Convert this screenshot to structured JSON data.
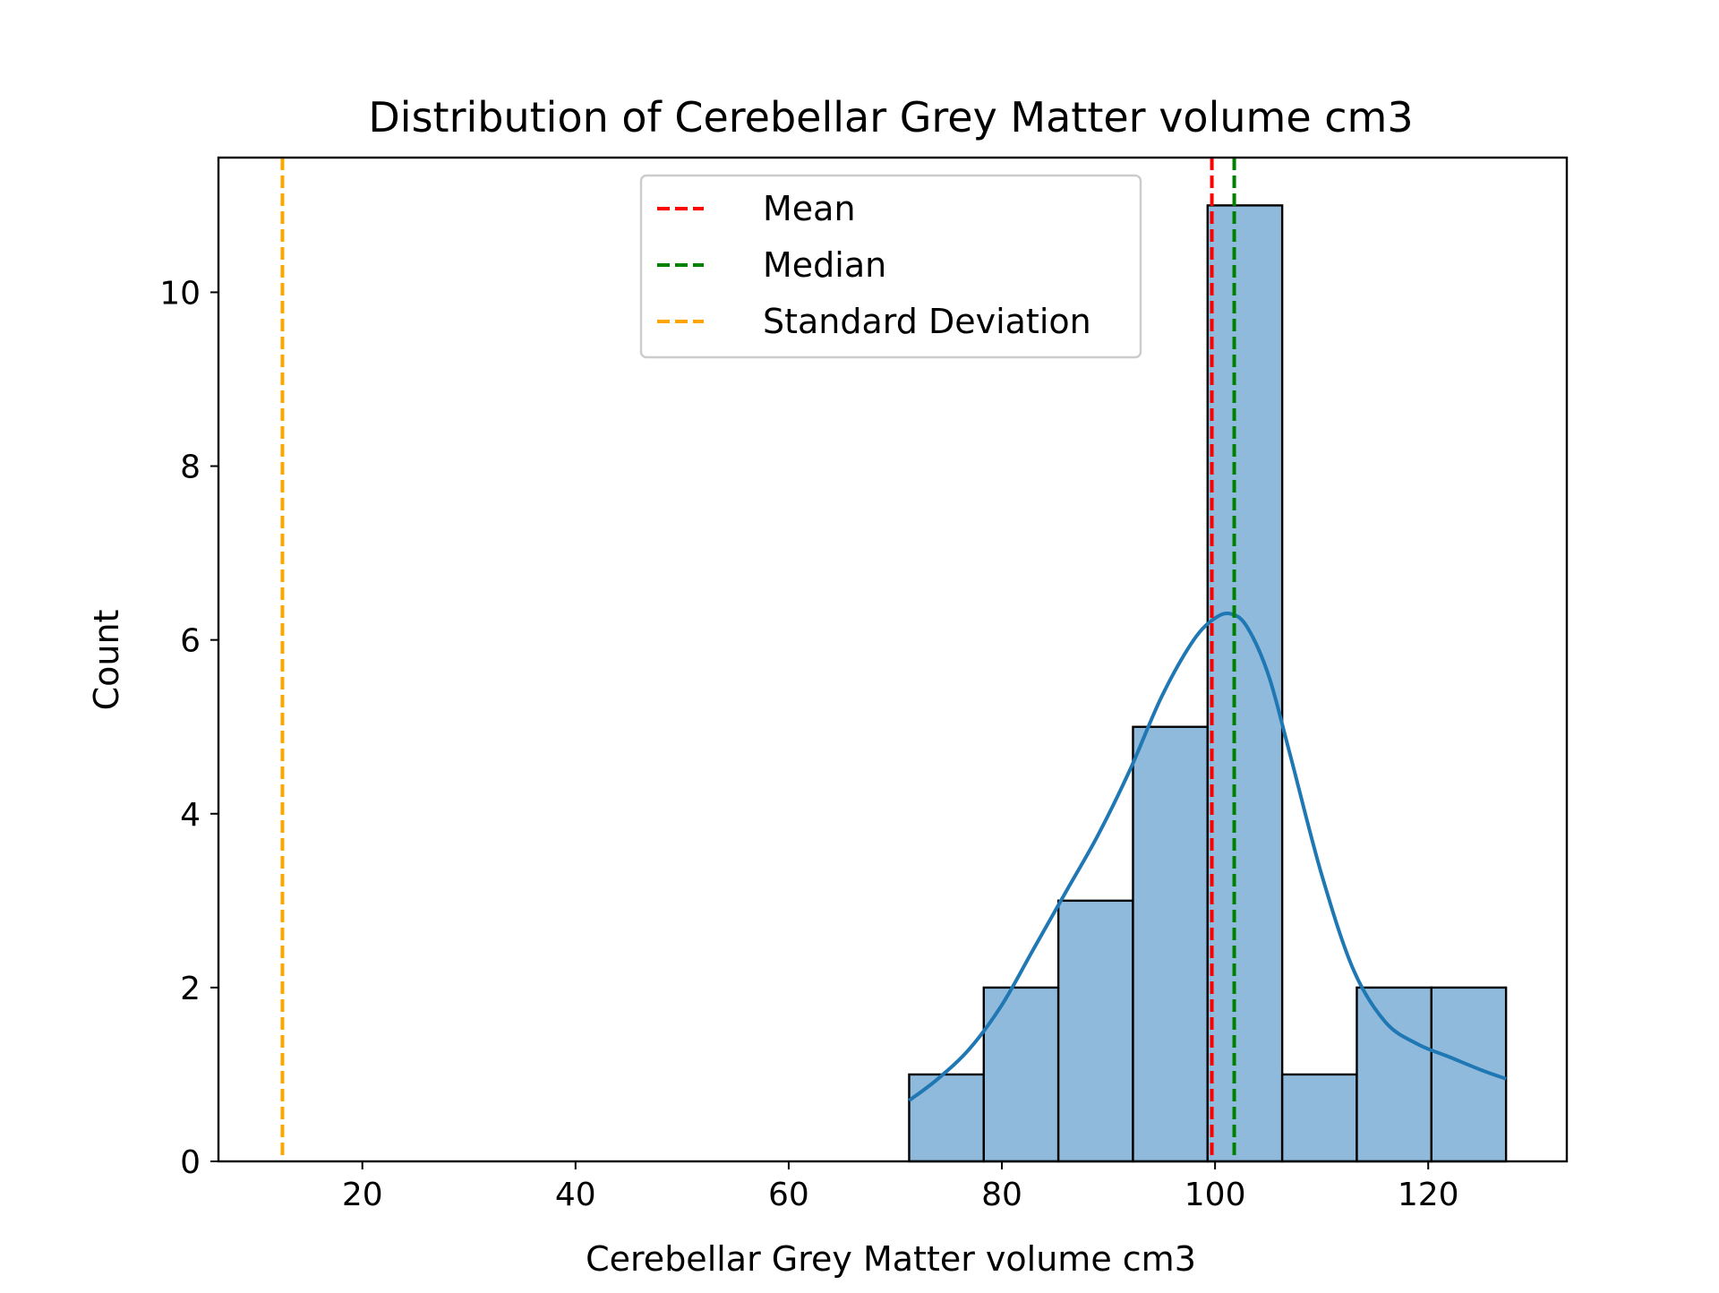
{
  "chart_data": {
    "type": "bar",
    "title": "Distribution of Cerebellar Grey Matter volume cm3",
    "xlabel": "Cerebellar Grey Matter volume cm3",
    "ylabel": "Count",
    "xlim": [
      6.5,
      133.0
    ],
    "ylim": [
      0,
      11.55
    ],
    "x_ticks": [
      20,
      40,
      60,
      80,
      100,
      120
    ],
    "y_ticks": [
      0,
      2,
      4,
      6,
      8,
      10
    ],
    "bins": [
      {
        "start": 71.3,
        "end": 78.3,
        "count": 1
      },
      {
        "start": 78.3,
        "end": 85.3,
        "count": 2
      },
      {
        "start": 85.3,
        "end": 92.3,
        "count": 3
      },
      {
        "start": 92.3,
        "end": 99.3,
        "count": 5
      },
      {
        "start": 99.3,
        "end": 106.3,
        "count": 11
      },
      {
        "start": 106.3,
        "end": 113.3,
        "count": 1
      },
      {
        "start": 113.3,
        "end": 120.3,
        "count": 2
      },
      {
        "start": 120.3,
        "end": 127.3,
        "count": 2
      }
    ],
    "kde": {
      "x": [
        71.3,
        74,
        77,
        80,
        83,
        86,
        89,
        92,
        95,
        98,
        100,
        101.5,
        103,
        105,
        107,
        110,
        113,
        116,
        119,
        122,
        125,
        127.3
      ],
      "y": [
        0.7,
        0.95,
        1.3,
        1.8,
        2.45,
        3.1,
        3.75,
        4.5,
        5.35,
        6.0,
        6.25,
        6.3,
        6.15,
        5.6,
        4.7,
        3.3,
        2.2,
        1.6,
        1.35,
        1.2,
        1.05,
        0.95
      ]
    },
    "lines": [
      {
        "name": "Mean",
        "x": 99.7,
        "color": "#ff0000",
        "style": "dashed"
      },
      {
        "name": "Median",
        "x": 101.8,
        "color": "#008000",
        "style": "dashed"
      },
      {
        "name": "Standard Deviation",
        "x": 12.5,
        "color": "#ffa500",
        "style": "dashed"
      }
    ],
    "legend": {
      "placement": "upper-center",
      "entries": [
        "Mean",
        "Median",
        "Standard Deviation"
      ]
    },
    "bar_color": "#8fbadb",
    "kde_color": "#1f77b4",
    "grid": false
  }
}
